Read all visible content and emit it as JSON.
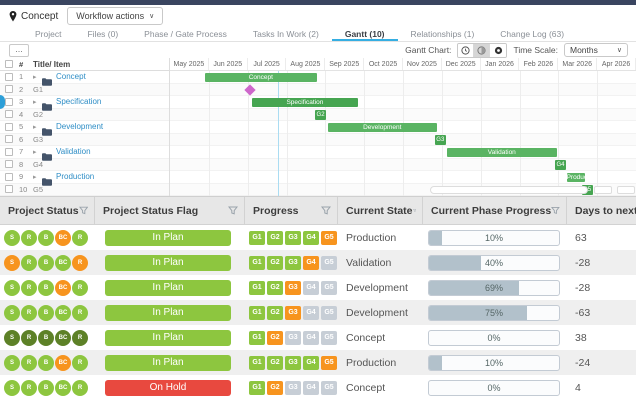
{
  "header": {
    "project_label": "Concept",
    "workflow_actions": "Workflow actions",
    "chevron": "∨"
  },
  "tabs": [
    {
      "label": "Project",
      "active": false
    },
    {
      "label": "Files (0)",
      "active": false
    },
    {
      "label": "Phase / Gate Process",
      "active": false
    },
    {
      "label": "Tasks In Work (2)",
      "active": false
    },
    {
      "label": "Gantt (10)",
      "active": true
    },
    {
      "label": "Relationships (1)",
      "active": false
    },
    {
      "label": "Change Log (63)",
      "active": false
    }
  ],
  "toolbar": {
    "more": "…",
    "gantt_chart_label": "Gantt Chart:",
    "time_scale_label": "Time Scale:",
    "time_scale_value": "Months",
    "chevron": "∨"
  },
  "gantt": {
    "list_header": {
      "num": "#",
      "title": "Title/ Item"
    },
    "months": [
      "May 2025",
      "Jun 2025",
      "Jul 2025",
      "Aug 2025",
      "Sep 2025",
      "Oct 2025",
      "Nov 2025",
      "Dec 2025",
      "Jan 2026",
      "Feb 2026",
      "Mar 2026",
      "Apr 2026"
    ],
    "rows": [
      {
        "num": "1",
        "label": "Concept",
        "folder": true
      },
      {
        "num": "2",
        "label": "G1",
        "folder": false
      },
      {
        "num": "3",
        "label": "Specification",
        "folder": true
      },
      {
        "num": "4",
        "label": "G2",
        "folder": false
      },
      {
        "num": "5",
        "label": "Development",
        "folder": true
      },
      {
        "num": "6",
        "label": "G3",
        "folder": false
      },
      {
        "num": "7",
        "label": "Validation",
        "folder": true
      },
      {
        "num": "8",
        "label": "G4",
        "folder": false
      },
      {
        "num": "9",
        "label": "Production",
        "folder": true
      },
      {
        "num": "10",
        "label": "G5",
        "folder": false
      }
    ],
    "bars": [
      {
        "row": 1,
        "type": "bar",
        "label": "Concept",
        "left_pct": 7.5,
        "width_pct": 24.0
      },
      {
        "row": 2,
        "type": "diamond",
        "label": "G1",
        "left_pct": 17.2
      },
      {
        "row": 3,
        "type": "bar",
        "label": "Specification",
        "left_pct": 17.5,
        "width_pct": 22.9,
        "dark": true
      },
      {
        "row": 4,
        "type": "gate",
        "label": "G2",
        "left_pct": 32.2
      },
      {
        "row": 5,
        "type": "bar",
        "label": "Development",
        "left_pct": 33.9,
        "width_pct": 23.3
      },
      {
        "row": 6,
        "type": "gate",
        "label": "G3",
        "left_pct": 57.9
      },
      {
        "row": 7,
        "type": "bar",
        "label": "Validation",
        "left_pct": 59.4,
        "width_pct": 23.6
      },
      {
        "row": 8,
        "type": "gate",
        "label": "G4",
        "left_pct": 83.7
      },
      {
        "row": 9,
        "type": "bar",
        "label": "Production",
        "left_pct": 85.1,
        "width_pct": 3.9
      },
      {
        "row": 10,
        "type": "gate",
        "label": "G5",
        "left_pct": 89.4
      }
    ],
    "today_line_pct": 23.2,
    "scrollbar": {
      "thumb_left_pct": 55.8,
      "thumb_width_pct": 34.0,
      "buttons": 2
    }
  },
  "table": {
    "headers": [
      "Project Status",
      "Project Status Flag",
      "Progress",
      "Current State",
      "Current Phase Progress",
      "Days to next …"
    ],
    "status_letters": [
      "S",
      "R",
      "B",
      "BC",
      "R"
    ],
    "gate_labels": [
      "G1",
      "G2",
      "G3",
      "G4",
      "G5"
    ],
    "rows": [
      {
        "status": [
          "green",
          "green",
          "green",
          "orange",
          "green"
        ],
        "flag": "In Plan",
        "flag_color": "green",
        "gates": [
          "green",
          "green",
          "green",
          "green",
          "orange"
        ],
        "state": "Production",
        "progress_pct": 10,
        "progress_label": "10%",
        "days": "63"
      },
      {
        "status": [
          "orange",
          "green",
          "green",
          "green",
          "orange"
        ],
        "flag": "In Plan",
        "flag_color": "green",
        "gates": [
          "green",
          "green",
          "green",
          "orange",
          "gray"
        ],
        "state": "Validation",
        "progress_pct": 40,
        "progress_label": "40%",
        "days": "-28"
      },
      {
        "status": [
          "green",
          "green",
          "green",
          "orange",
          "green"
        ],
        "flag": "In Plan",
        "flag_color": "green",
        "gates": [
          "green",
          "green",
          "orange",
          "gray",
          "gray"
        ],
        "state": "Development",
        "progress_pct": 69,
        "progress_label": "69%",
        "days": "-28"
      },
      {
        "status": [
          "green",
          "green",
          "green",
          "green",
          "green"
        ],
        "flag": "In Plan",
        "flag_color": "green",
        "gates": [
          "green",
          "green",
          "orange",
          "gray",
          "gray"
        ],
        "state": "Development",
        "progress_pct": 75,
        "progress_label": "75%",
        "days": "-63"
      },
      {
        "status": [
          "dark",
          "dark",
          "dark",
          "dark",
          "dark"
        ],
        "flag": "In Plan",
        "flag_color": "green",
        "gates": [
          "green",
          "orange",
          "gray",
          "gray",
          "gray"
        ],
        "state": "Concept",
        "progress_pct": 0,
        "progress_label": "0%",
        "days": "38"
      },
      {
        "status": [
          "green",
          "green",
          "green",
          "orange",
          "green"
        ],
        "flag": "In Plan",
        "flag_color": "green",
        "gates": [
          "green",
          "green",
          "green",
          "green",
          "orange"
        ],
        "state": "Production",
        "progress_pct": 10,
        "progress_label": "10%",
        "days": "-24"
      },
      {
        "status": [
          "green",
          "green",
          "green",
          "green",
          "green"
        ],
        "flag": "On Hold",
        "flag_color": "red",
        "gates": [
          "green",
          "orange",
          "gray",
          "gray",
          "gray"
        ],
        "state": "Concept",
        "progress_pct": 0,
        "progress_label": "0%",
        "days": "4"
      }
    ]
  },
  "colors": {
    "green": "#8dc63f",
    "orange": "#f7941e",
    "dark": "#5d8127",
    "gray": "#c7ced6",
    "red": "#e8493f",
    "bar_green": "#5ab463",
    "bar_green_dark": "#46a551",
    "diamond_pink": "#ce67cb",
    "tab_accent": "#35aee2"
  }
}
